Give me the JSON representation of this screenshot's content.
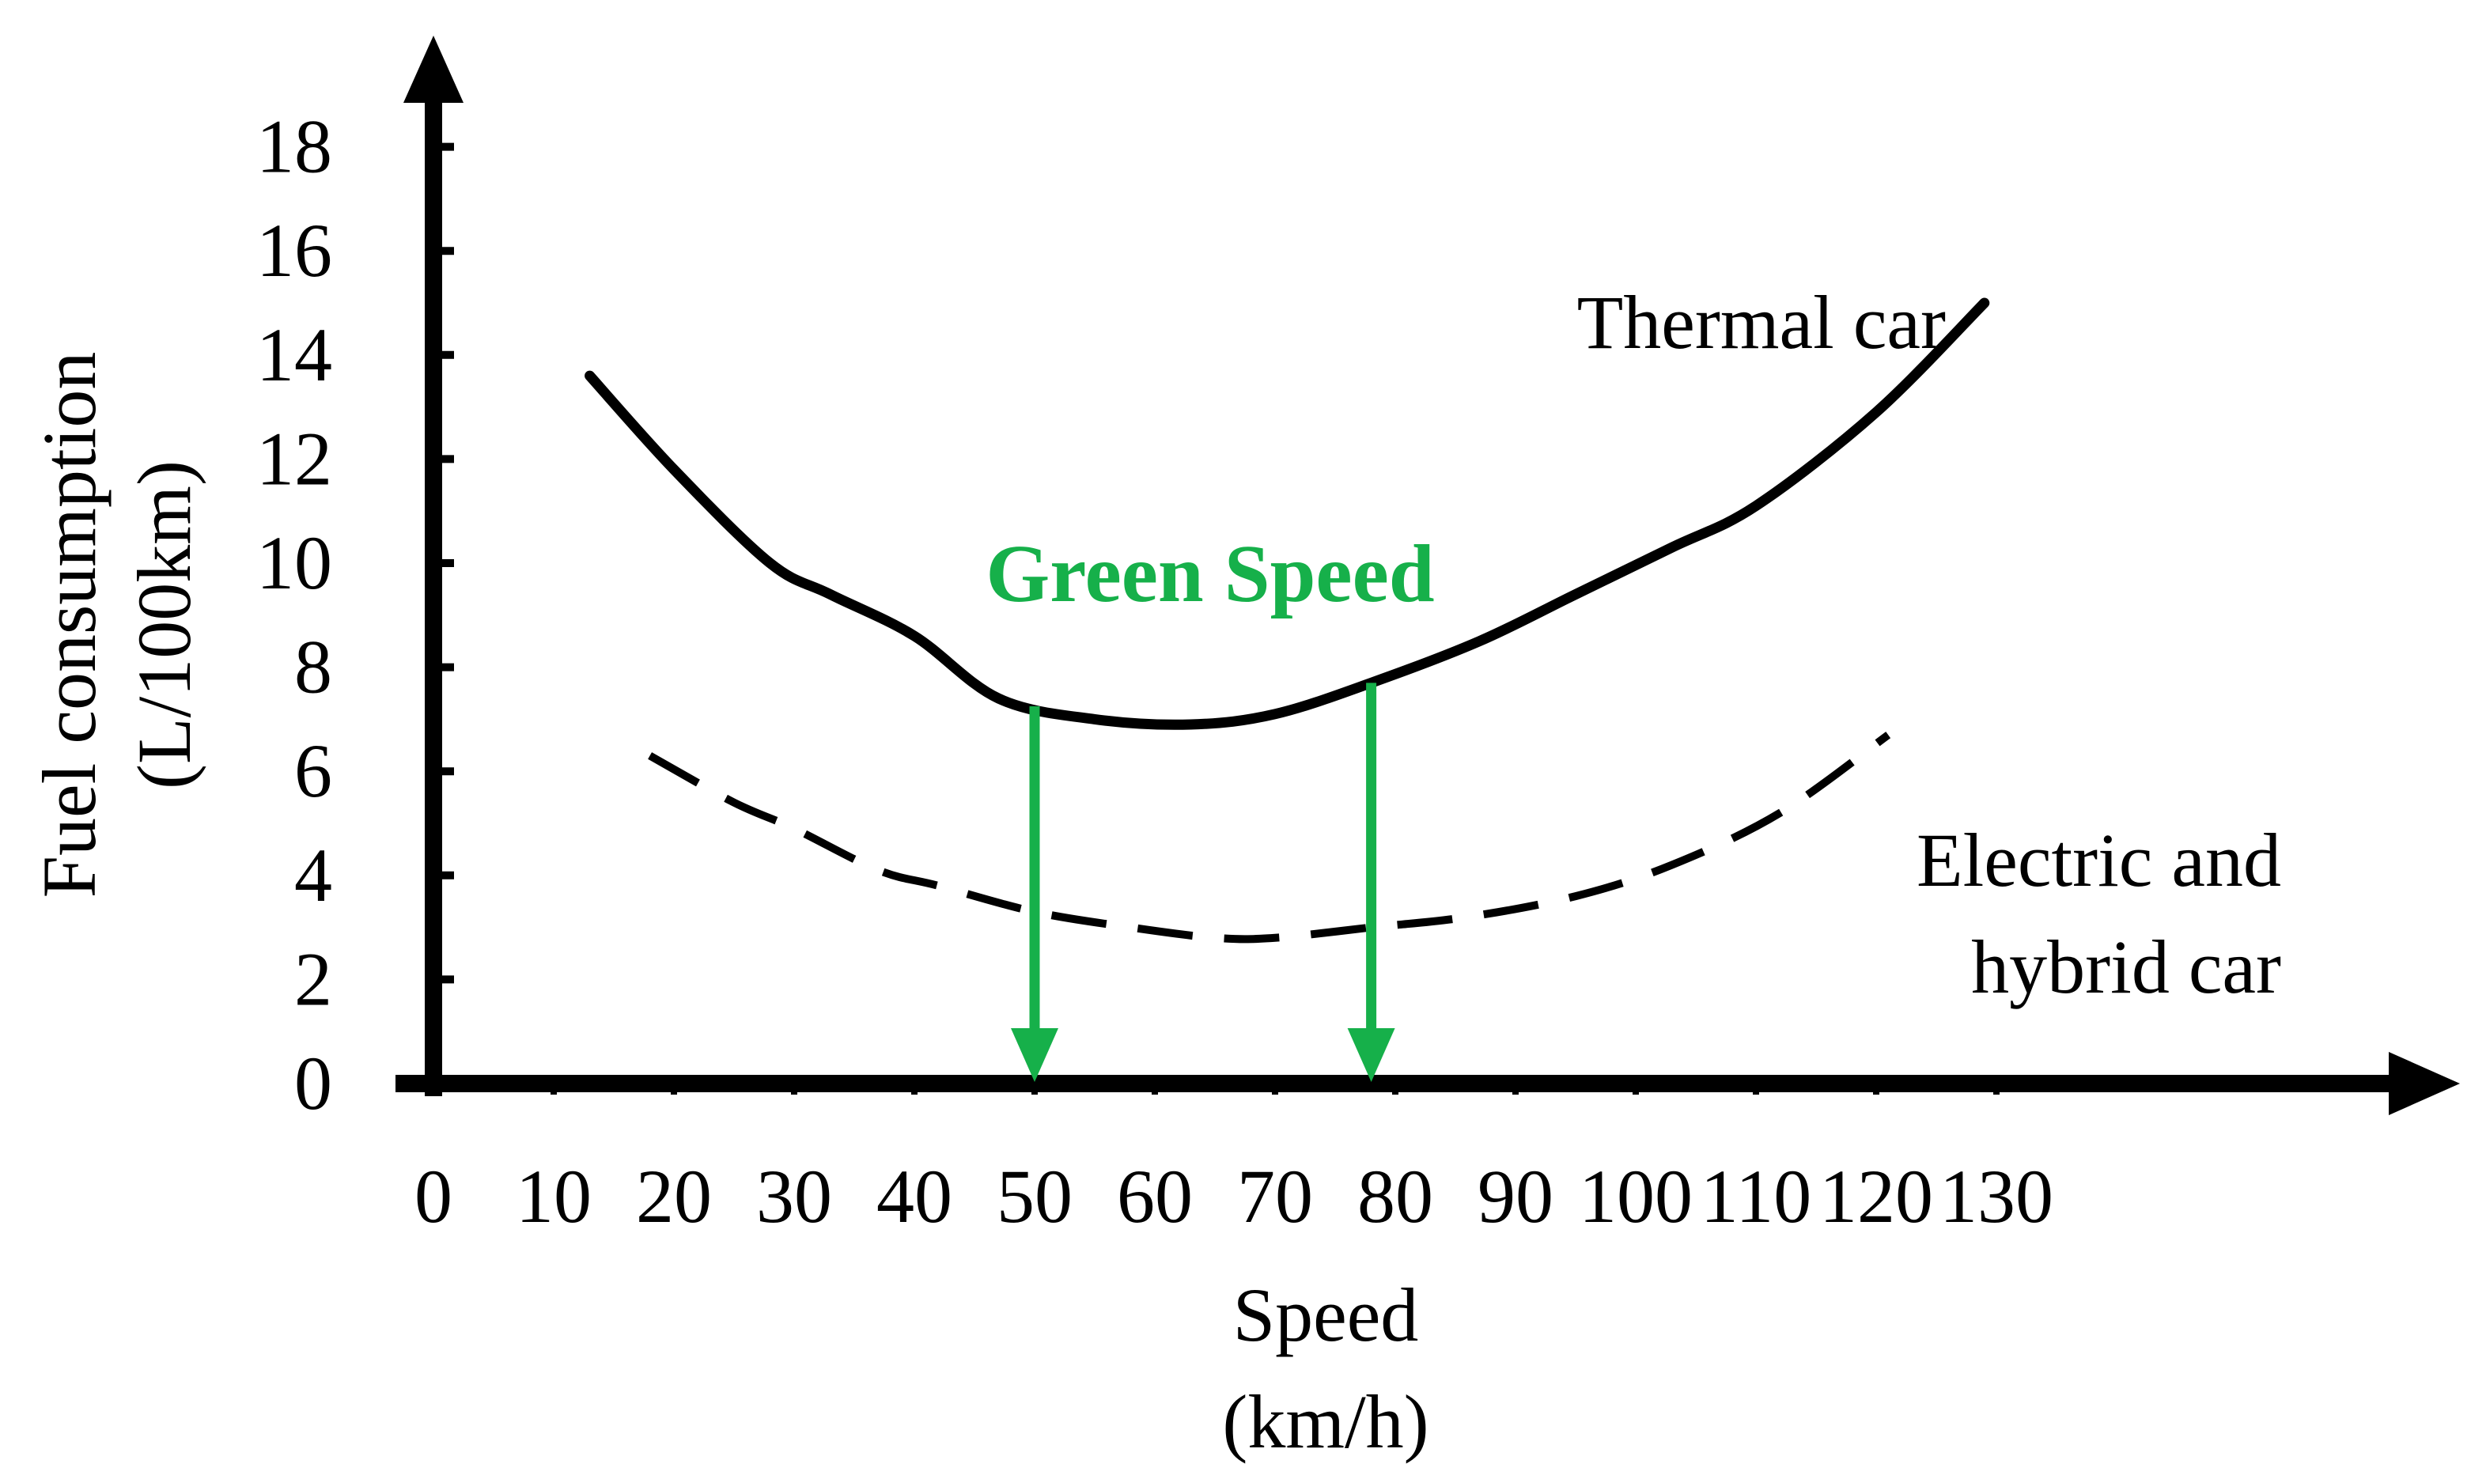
{
  "chart_data": {
    "type": "line",
    "title": "",
    "xlabel": [
      "Speed",
      "(km/h)"
    ],
    "ylabel": [
      "Fuel consumption",
      "(L/100km)"
    ],
    "xlim": [
      0,
      140
    ],
    "ylim": [
      0,
      19
    ],
    "x_ticks": [
      0,
      10,
      20,
      30,
      40,
      50,
      60,
      70,
      80,
      90,
      100,
      110,
      120,
      130
    ],
    "y_ticks": [
      0,
      2,
      4,
      6,
      8,
      10,
      12,
      14,
      16,
      18
    ],
    "grid": false,
    "series": [
      {
        "name": "Thermal car",
        "style": "solid",
        "color": "#000000",
        "x": [
          13,
          20,
          28,
          33,
          40,
          47,
          55,
          63,
          70,
          78,
          87,
          95,
          103,
          110,
          120,
          129
        ],
        "y": [
          13.6,
          11.8,
          10.0,
          9.4,
          8.6,
          7.4,
          7.0,
          6.9,
          7.1,
          7.7,
          8.5,
          9.4,
          10.3,
          11.1,
          12.9,
          15.0
        ]
      },
      {
        "name": "Electric and hybrid car",
        "style": "dashed",
        "color": "#000000",
        "x": [
          18,
          25,
          30,
          37,
          42,
          50,
          58,
          65,
          70,
          78,
          86,
          95,
          103,
          112,
          121
        ],
        "y": [
          6.3,
          5.4,
          4.9,
          4.1,
          3.8,
          3.3,
          3.0,
          2.8,
          2.8,
          3.0,
          3.2,
          3.6,
          4.2,
          5.2,
          6.7
        ]
      }
    ],
    "annotations": {
      "green_speed_label": "Green Speed",
      "green_speed_color": "#16b04a",
      "arrows_x": [
        50,
        78
      ]
    }
  }
}
